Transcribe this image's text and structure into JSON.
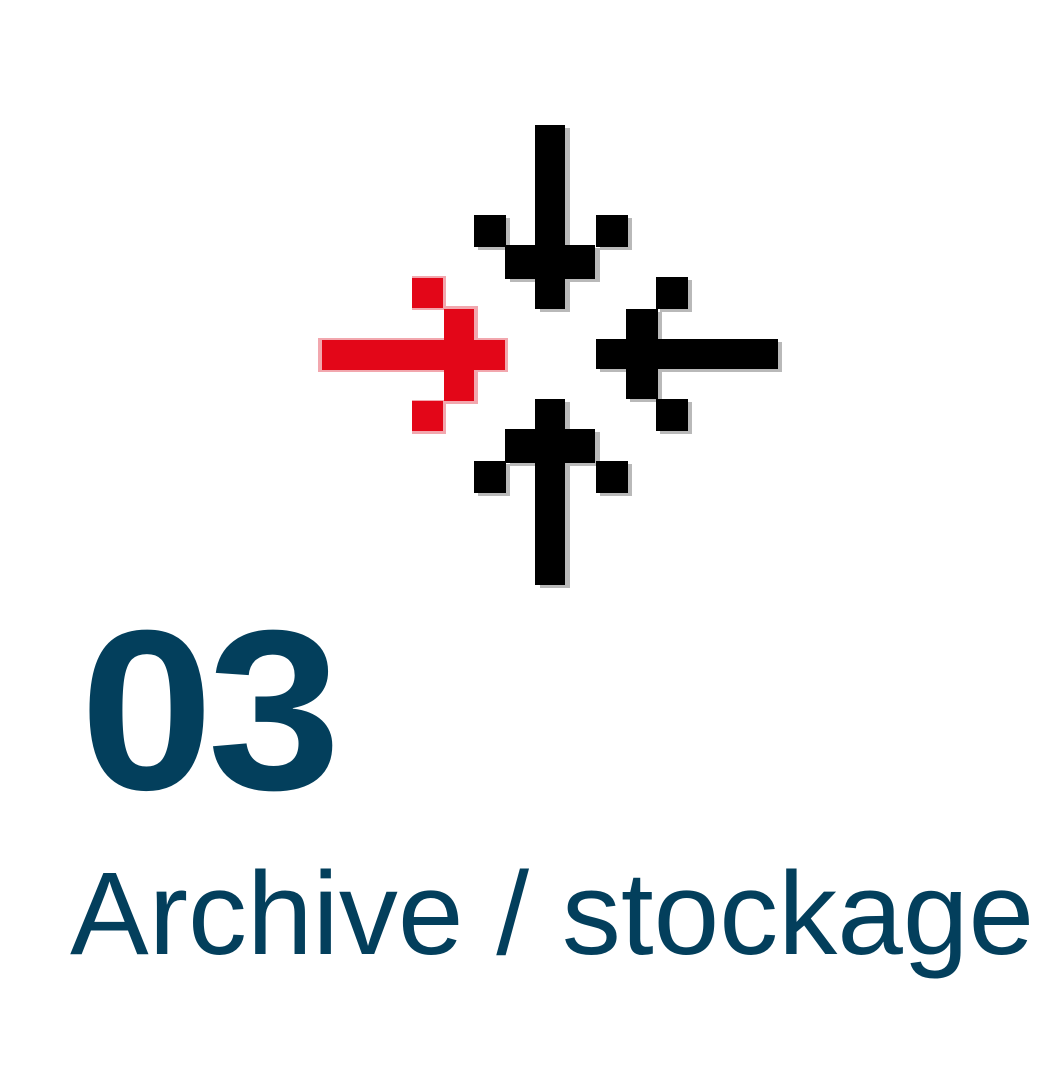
{
  "step": {
    "number": "03",
    "label": "Archive / stockage"
  },
  "logo": {
    "icon": "crosshair-plus-cluster-icon",
    "colors": {
      "accent": "#e30618",
      "dark": "#000000",
      "text": "#033f5c"
    }
  }
}
